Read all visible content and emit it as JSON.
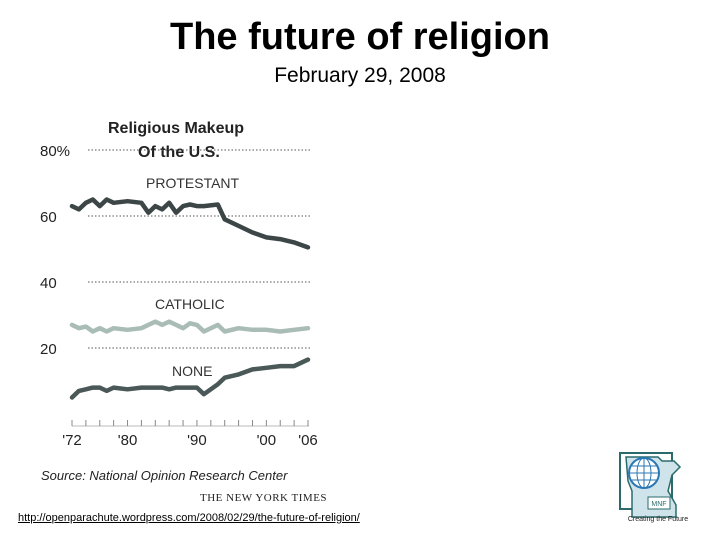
{
  "slide": {
    "title": "The future of religion",
    "date": "February 29, 2008",
    "source_url": "http://openparachute.wordpress.com/2008/02/29/the-future-of-religion/"
  },
  "logo": {
    "initials": "MNF",
    "caption": "Creating the Future",
    "colors": {
      "frame": "#2b6b6b",
      "state_fill": "#cfe3ea",
      "globe": "#2a78b4"
    }
  },
  "chart_data": {
    "type": "line",
    "title": [
      "Religious Makeup",
      "Of the U.S."
    ],
    "xlabel": "",
    "ylabel": "",
    "xlim": [
      1972,
      2006
    ],
    "ylim": [
      0,
      80
    ],
    "yticks": [
      20,
      40,
      60,
      80
    ],
    "ytick_labels": [
      "20",
      "40",
      "60",
      "80%"
    ],
    "xticks": [
      1972,
      1980,
      1990,
      2000,
      2006
    ],
    "xtick_labels": [
      "'72",
      "'80",
      "'90",
      "'00",
      "'06"
    ],
    "grid": "dotted horizontal",
    "x": [
      1972,
      1973,
      1974,
      1975,
      1976,
      1977,
      1978,
      1980,
      1982,
      1983,
      1984,
      1985,
      1986,
      1987,
      1988,
      1989,
      1990,
      1991,
      1993,
      1994,
      1996,
      1998,
      2000,
      2002,
      2004,
      2006
    ],
    "series": [
      {
        "name": "PROTESTANT",
        "color": "#3c4646",
        "values": [
          63,
          62,
          64,
          65,
          63,
          65,
          64,
          64.5,
          64,
          61,
          63,
          62,
          64,
          61,
          63,
          63.5,
          63,
          63,
          63.5,
          59,
          57,
          55,
          53.5,
          53,
          52,
          50.5
        ]
      },
      {
        "name": "CATHOLIC",
        "color": "#a9bcb6",
        "values": [
          27,
          26,
          26.5,
          25,
          26,
          25,
          26,
          25.5,
          26,
          27,
          28,
          27,
          28,
          27,
          26,
          27.5,
          27,
          25,
          27,
          25,
          26,
          25.5,
          25.5,
          25,
          25.5,
          26
        ]
      },
      {
        "name": "NONE",
        "color": "#4a5858",
        "values": [
          5,
          7,
          7.5,
          8,
          8,
          7,
          8,
          7.5,
          8,
          8,
          8,
          8,
          7.5,
          8,
          8,
          8,
          8,
          6,
          9,
          11,
          12,
          13.5,
          14,
          14.5,
          14.5,
          16.5
        ]
      }
    ],
    "source": "Source: National Opinion Research Center",
    "credit": "THE NEW YORK TIMES"
  }
}
